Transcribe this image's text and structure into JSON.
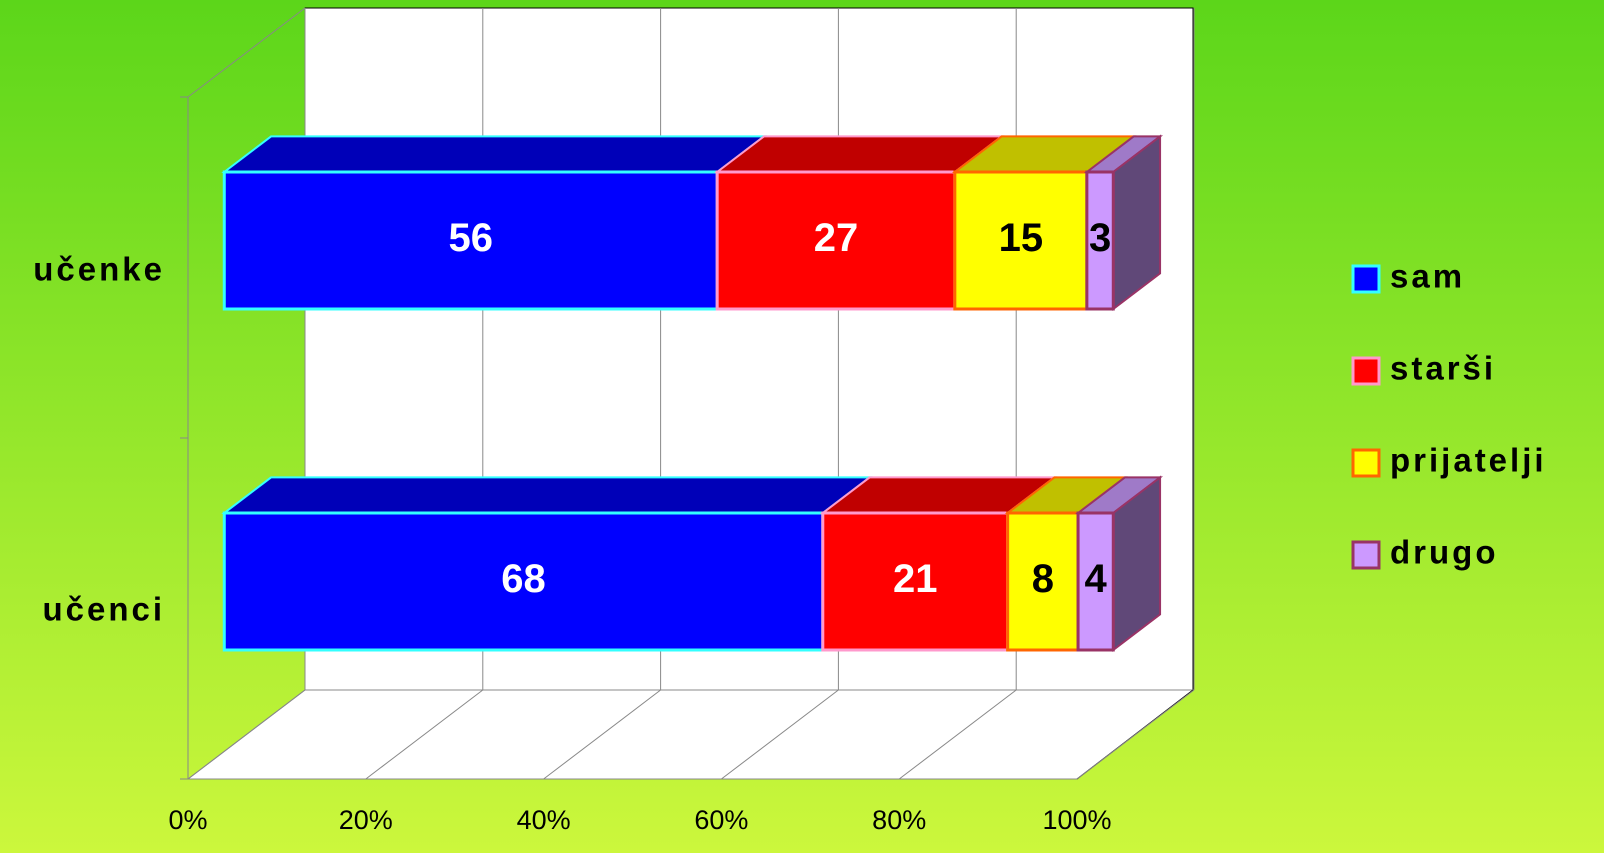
{
  "chart_data": {
    "type": "bar3d",
    "orientation": "horizontal",
    "stacking": "percent",
    "categories": [
      "učenke",
      "učenci"
    ],
    "series": [
      {
        "name": "sam",
        "color": "#0000ff",
        "edge": "#33ffff",
        "top": "#0000b8",
        "side": "#000080",
        "label_color": "#ffffff",
        "values": [
          56,
          68
        ]
      },
      {
        "name": "starši",
        "color": "#ff0000",
        "edge": "#ff99cc",
        "top": "#c00000",
        "side": "#800000",
        "label_color": "#ffffff",
        "values": [
          27,
          21
        ]
      },
      {
        "name": "prijatelji",
        "color": "#ffff00",
        "edge": "#ff6600",
        "top": "#c0c000",
        "side": "#808000",
        "label_color": "#000000",
        "values": [
          15,
          8
        ]
      },
      {
        "name": "drugo",
        "color": "#cc99ff",
        "edge": "#993366",
        "top": "#9f7ac8",
        "side": "#604878",
        "label_color": "#000000",
        "values": [
          3,
          4
        ]
      }
    ],
    "xlim": [
      0,
      100
    ],
    "xticks": [
      {
        "value": 0,
        "label": "0%"
      },
      {
        "value": 20,
        "label": "20%"
      },
      {
        "value": 40,
        "label": "40%"
      },
      {
        "value": 60,
        "label": "60%"
      },
      {
        "value": 80,
        "label": "80%"
      },
      {
        "value": 100,
        "label": "100%"
      }
    ],
    "grid": true,
    "legend": "right"
  }
}
